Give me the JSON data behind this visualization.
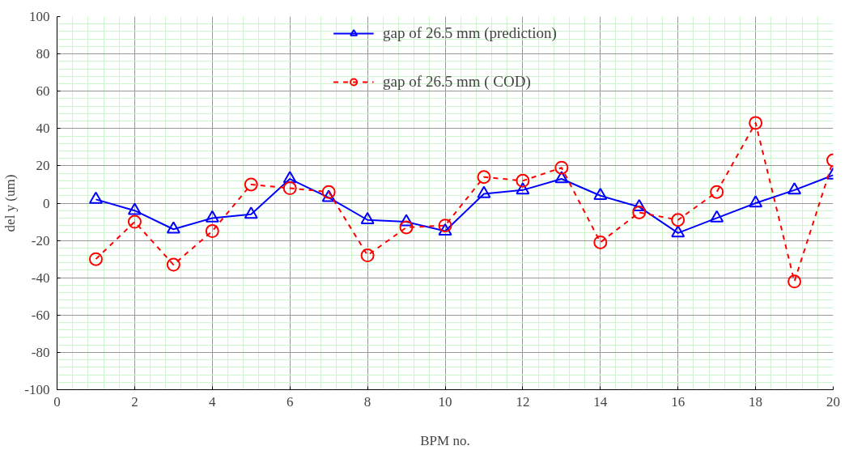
{
  "chart_data": {
    "type": "line",
    "xlabel": "BPM no.",
    "ylabel": "del y (um)",
    "x": [
      1,
      2,
      3,
      4,
      5,
      6,
      7,
      8,
      9,
      10,
      11,
      12,
      13,
      14,
      15,
      16,
      17,
      18,
      19,
      20
    ],
    "series": [
      {
        "name": "gap of 26.5 mm (prediction)",
        "color": "#0000ff",
        "marker": "triangle",
        "line_style": "solid",
        "values": [
          2,
          -4,
          -14,
          -8,
          -6,
          13,
          3,
          -9,
          -10,
          -15,
          5,
          7,
          13,
          4,
          -2,
          -16,
          -8,
          0,
          7,
          15
        ]
      },
      {
        "name": "gap of 26.5 mm ( COD)",
        "color": "#ff0000",
        "marker": "circle",
        "line_style": "dashed",
        "values": [
          -30,
          -10,
          -33,
          -15,
          10,
          8,
          6,
          -28,
          -13,
          -12,
          14,
          12,
          19,
          -21,
          -5,
          -9,
          6,
          43,
          -42,
          23
        ]
      }
    ],
    "xlim": [
      0,
      20
    ],
    "xticks": [
      0,
      {
        "value": 0.4,
        "label": null
      },
      {
        "value": 0.8,
        "label": null
      },
      {
        "value": 1.2,
        "label": null
      },
      {
        "value": 1.6,
        "label": null
      },
      2,
      {
        "value": 2.4,
        "label": null
      },
      {
        "value": 2.8,
        "label": null
      },
      {
        "value": 3.2,
        "label": null
      },
      {
        "value": 3.6,
        "label": null
      },
      4,
      {
        "value": 4.4,
        "label": null
      },
      {
        "value": 4.8,
        "label": null
      },
      {
        "value": 5.2,
        "label": null
      },
      {
        "value": 5.6,
        "label": null
      },
      6,
      {
        "value": 6.4,
        "label": null
      },
      {
        "value": 6.8,
        "label": null
      },
      {
        "value": 7.2,
        "label": null
      },
      {
        "value": 7.6,
        "label": null
      },
      8,
      {
        "value": 8.4,
        "label": null
      },
      {
        "value": 8.8,
        "label": null
      },
      {
        "value": 9.2,
        "label": null
      },
      {
        "value": 9.6,
        "label": null
      },
      10,
      {
        "value": 10.4,
        "label": null
      },
      {
        "value": 10.8,
        "label": null
      },
      {
        "value": 11.2,
        "label": null
      },
      {
        "value": 11.6,
        "label": null
      },
      12,
      {
        "value": 12.4,
        "label": null
      },
      {
        "value": 12.8,
        "label": null
      },
      {
        "value": 13.2,
        "label": null
      },
      {
        "value": 13.6,
        "label": null
      },
      14,
      {
        "value": 14.4,
        "label": null
      },
      {
        "value": 14.8,
        "label": null
      },
      {
        "value": 15.2,
        "label": null
      },
      {
        "value": 15.6,
        "label": null
      },
      16,
      {
        "value": 16.4,
        "label": null
      },
      {
        "value": 16.8,
        "label": null
      },
      {
        "value": 17.2,
        "label": null
      },
      {
        "value": 17.6,
        "label": null
      },
      18,
      {
        "value": 18.4,
        "label": null
      },
      {
        "value": 18.8,
        "label": null
      },
      {
        "value": 19.2,
        "label": null
      },
      {
        "value": 19.6,
        "label": null
      },
      20
    ],
    "ylim": [
      -100,
      100
    ],
    "yticks": [
      -100,
      {
        "value": -96,
        "label": null
      },
      {
        "value": -92,
        "label": null
      },
      {
        "value": -88,
        "label": null
      },
      {
        "value": -84,
        "label": null
      },
      -80,
      {
        "value": -76,
        "label": null
      },
      {
        "value": -72,
        "label": null
      },
      {
        "value": -68,
        "label": null
      },
      {
        "value": -64,
        "label": null
      },
      -60,
      {
        "value": -56,
        "label": null
      },
      {
        "value": -52,
        "label": null
      },
      {
        "value": -48,
        "label": null
      },
      {
        "value": -44,
        "label": null
      },
      -40,
      {
        "value": -36,
        "label": null
      },
      {
        "value": -32,
        "label": null
      },
      {
        "value": -28,
        "label": null
      },
      {
        "value": -24,
        "label": null
      },
      -20,
      {
        "value": -16,
        "label": null
      },
      {
        "value": -12,
        "label": null
      },
      {
        "value": -8,
        "label": null
      },
      {
        "value": -4,
        "label": null
      },
      0,
      {
        "value": 4,
        "label": null
      },
      {
        "value": 8,
        "label": null
      },
      {
        "value": 12,
        "label": null
      },
      {
        "value": 16,
        "label": null
      },
      20,
      {
        "value": 24,
        "label": null
      },
      {
        "value": 28,
        "label": null
      },
      {
        "value": 32,
        "label": null
      },
      {
        "value": 36,
        "label": null
      },
      40,
      {
        "value": 44,
        "label": null
      },
      {
        "value": 48,
        "label": null
      },
      {
        "value": 52,
        "label": null
      },
      {
        "value": 56,
        "label": null
      },
      60,
      {
        "value": 64,
        "label": null
      },
      {
        "value": 68,
        "label": null
      },
      {
        "value": 72,
        "label": null
      },
      {
        "value": 76,
        "label": null
      },
      80,
      {
        "value": 84,
        "label": null
      },
      {
        "value": 88,
        "label": null
      },
      {
        "value": 92,
        "label": null
      },
      {
        "value": 96,
        "label": null
      },
      100
    ],
    "grid": true,
    "legend": "top"
  }
}
